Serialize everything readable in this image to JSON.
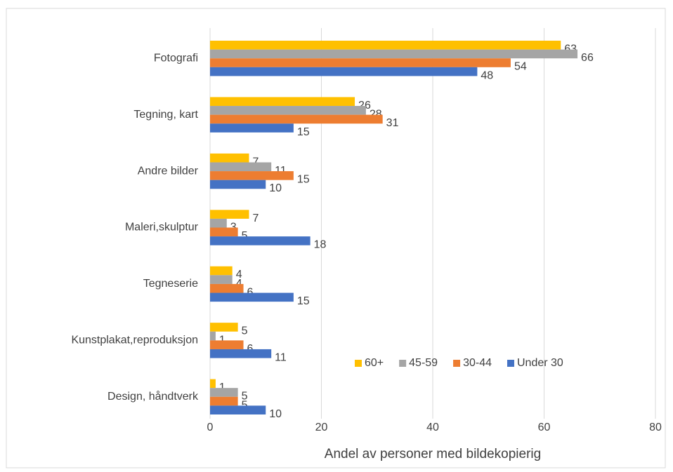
{
  "chart_data": {
    "type": "bar",
    "orientation": "horizontal",
    "x_label": "Andel av personer med bildekopierig",
    "categories": [
      "Fotografi",
      "Tegning, kart",
      "Andre bilder",
      "Maleri,skulptur",
      "Tegneserie",
      "Kunstplakat,reproduksjon",
      "Design, håndtverk"
    ],
    "series": [
      {
        "name": "60+",
        "color": "#ffc000",
        "values": [
          63,
          26,
          7,
          7,
          4,
          5,
          1
        ]
      },
      {
        "name": "45-59",
        "color": "#a5a5a5",
        "values": [
          66,
          28,
          11,
          3,
          4,
          1,
          5
        ]
      },
      {
        "name": "30-44",
        "color": "#ed7d31",
        "values": [
          54,
          31,
          15,
          5,
          6,
          6,
          5
        ]
      },
      {
        "name": "Under 30",
        "color": "#4472c4",
        "values": [
          48,
          15,
          10,
          18,
          15,
          11,
          10
        ]
      }
    ],
    "xlim": [
      0,
      80
    ],
    "xticks": [
      0,
      20,
      40,
      60,
      80
    ],
    "grid": true,
    "legend": "lower right"
  }
}
